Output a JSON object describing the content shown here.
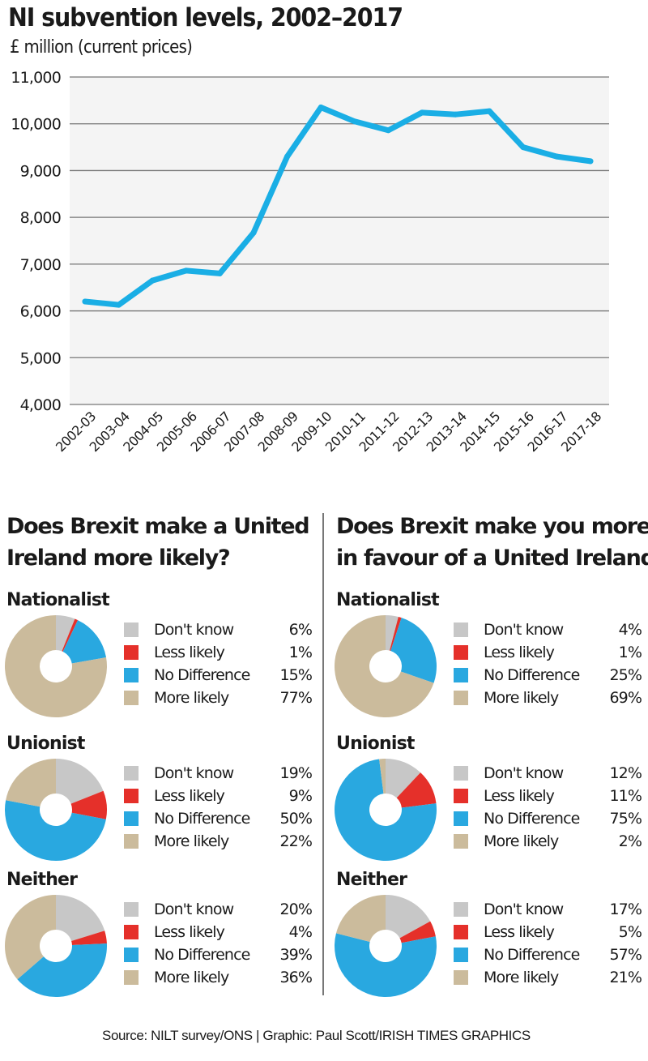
{
  "colors": {
    "line": "#1aaee5",
    "plot_bg": "#f4f4f4",
    "grid": "#777777",
    "dont_know": "#c7c7c7",
    "less_likely": "#e5302a",
    "no_difference": "#29a8e0",
    "more_likely": "#cbbb9c"
  },
  "chart_data": [
    {
      "type": "line",
      "title": "NI subvention levels, 2002–2017",
      "subtitle": "£ million (current prices)",
      "xlabel": "",
      "ylabel": "£ million (current prices)",
      "ylim": [
        4000,
        11000
      ],
      "yticks": [
        4000,
        5000,
        6000,
        7000,
        8000,
        9000,
        10000,
        11000
      ],
      "ytick_labels": [
        "4,000",
        "5,000",
        "6,000",
        "7,000",
        "8,000",
        "9,000",
        "10,000",
        "11,000"
      ],
      "grid": true,
      "categories": [
        "2002-03",
        "2003-04",
        "2004-05",
        "2005-06",
        "2006-07",
        "2007-08",
        "2008-09",
        "2009-10",
        "2010-11",
        "2011-12",
        "2012-13",
        "2013-14",
        "2014-15",
        "2015-16",
        "2016-17",
        "2017-18"
      ],
      "series": [
        {
          "name": "NI subvention",
          "values": [
            6200,
            6130,
            6650,
            6860,
            6800,
            7670,
            9300,
            10350,
            10050,
            9860,
            10240,
            10200,
            10270,
            9500,
            9300,
            9200
          ]
        }
      ]
    },
    {
      "type": "pie",
      "title": "Does Brexit make a United Ireland more likely?",
      "groups": [
        {
          "name": "Nationalist",
          "categories": [
            "Don't know",
            "Less likely",
            "No Difference",
            "More likely"
          ],
          "values": [
            6,
            1,
            15,
            77
          ]
        },
        {
          "name": "Unionist",
          "categories": [
            "Don't know",
            "Less likely",
            "No Difference",
            "More likely"
          ],
          "values": [
            19,
            9,
            50,
            22
          ]
        },
        {
          "name": "Neither",
          "categories": [
            "Don't know",
            "Less likely",
            "No Difference",
            "More likely"
          ],
          "values": [
            20,
            4,
            39,
            36
          ]
        }
      ]
    },
    {
      "type": "pie",
      "title": "Does Brexit make you more in favour of a United Ireland?",
      "groups": [
        {
          "name": "Nationalist",
          "categories": [
            "Don't know",
            "Less likely",
            "No Difference",
            "More likely"
          ],
          "values": [
            4,
            1,
            25,
            69
          ]
        },
        {
          "name": "Unionist",
          "categories": [
            "Don't know",
            "Less likely",
            "No Difference",
            "More likely"
          ],
          "values": [
            12,
            11,
            75,
            2
          ]
        },
        {
          "name": "Neither",
          "categories": [
            "Don't know",
            "Less likely",
            "No Difference",
            "More likely"
          ],
          "values": [
            17,
            5,
            57,
            21
          ]
        }
      ]
    }
  ],
  "text": {
    "title": "NI subvention levels, 2002–2017",
    "subtitle": "£ million (current prices)",
    "left_title_1": "Does Brexit make a United",
    "left_title_2": "Ireland more likely?",
    "right_title_1": "Does Brexit make you more",
    "right_title_2": "in favour of a United Ireland?",
    "footer": "Source: NILT survey/ONS  |  Graphic: Paul Scott/IRISH TIMES GRAPHICS"
  }
}
